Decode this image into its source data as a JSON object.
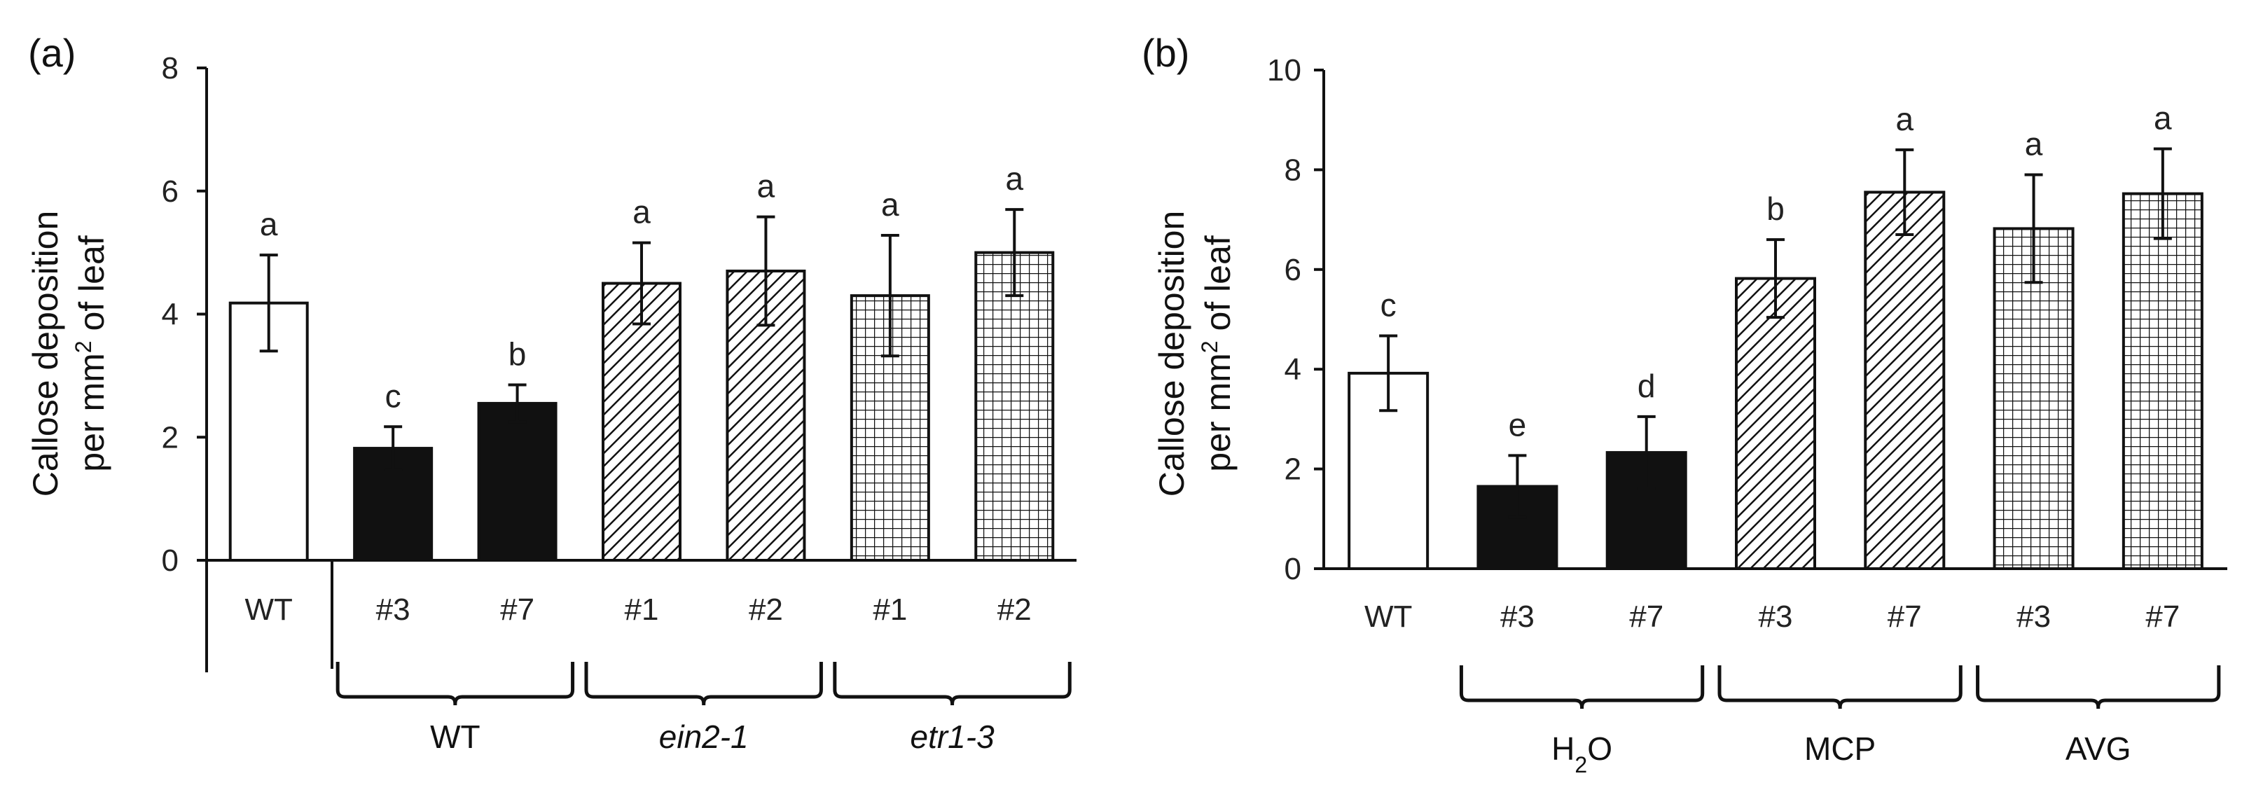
{
  "colors": {
    "ink": "#111111",
    "white": "#ffffff",
    "black": "#111111"
  },
  "chart_data": [
    {
      "type": "bar",
      "panel_label": "(a)",
      "ylabel_line1": "Callose deposition",
      "ylabel_line2_prefix": "per mm",
      "ylabel_line2_sup": "2",
      "ylabel_line2_suffix": " of leaf",
      "ylim": [
        0,
        8
      ],
      "yticks": [
        0,
        2,
        4,
        6,
        8
      ],
      "categories": [
        "WT",
        "#3",
        "#7",
        "#1",
        "#2",
        "#1",
        "#2"
      ],
      "values": [
        4.18,
        1.82,
        2.55,
        4.5,
        4.7,
        4.3,
        5.0
      ],
      "errors": [
        0.78,
        0.35,
        0.3,
        0.66,
        0.88,
        0.98,
        0.7
      ],
      "significance": [
        "a",
        "c",
        "b",
        "a",
        "a",
        "a",
        "a"
      ],
      "patterns": [
        "white",
        "black",
        "black",
        "hatch",
        "hatch",
        "grid",
        "grid"
      ],
      "groups": [
        {
          "label": "WT",
          "italic": false,
          "from": 1,
          "to": 2
        },
        {
          "label": "ein2-1",
          "italic": true,
          "from": 3,
          "to": 4
        },
        {
          "label": "etr1-3",
          "italic": true,
          "from": 5,
          "to": 6
        }
      ]
    },
    {
      "type": "bar",
      "panel_label": "(b)",
      "ylabel_line1": "Callose deposition",
      "ylabel_line2_prefix": "per mm",
      "ylabel_line2_sup": "2",
      "ylabel_line2_suffix": " of leaf",
      "ylim": [
        0,
        10
      ],
      "yticks": [
        0,
        2,
        4,
        6,
        8,
        10
      ],
      "categories": [
        "WT",
        "#3",
        "#7",
        "#3",
        "#7",
        "#3",
        "#7"
      ],
      "values": [
        3.92,
        1.65,
        2.33,
        5.82,
        7.55,
        6.82,
        7.52
      ],
      "errors": [
        0.75,
        0.62,
        0.72,
        0.78,
        0.85,
        1.08,
        0.9
      ],
      "significance": [
        "c",
        "e",
        "d",
        "b",
        "a",
        "a",
        "a"
      ],
      "patterns": [
        "white",
        "black",
        "black",
        "hatch",
        "hatch",
        "grid",
        "grid"
      ],
      "groups": [
        {
          "label": "H",
          "sub": "2",
          "suffix": "O",
          "italic": false,
          "from": 1,
          "to": 2
        },
        {
          "label": "MCP",
          "italic": false,
          "from": 3,
          "to": 4
        },
        {
          "label": "AVG",
          "italic": false,
          "from": 5,
          "to": 6
        }
      ]
    }
  ]
}
